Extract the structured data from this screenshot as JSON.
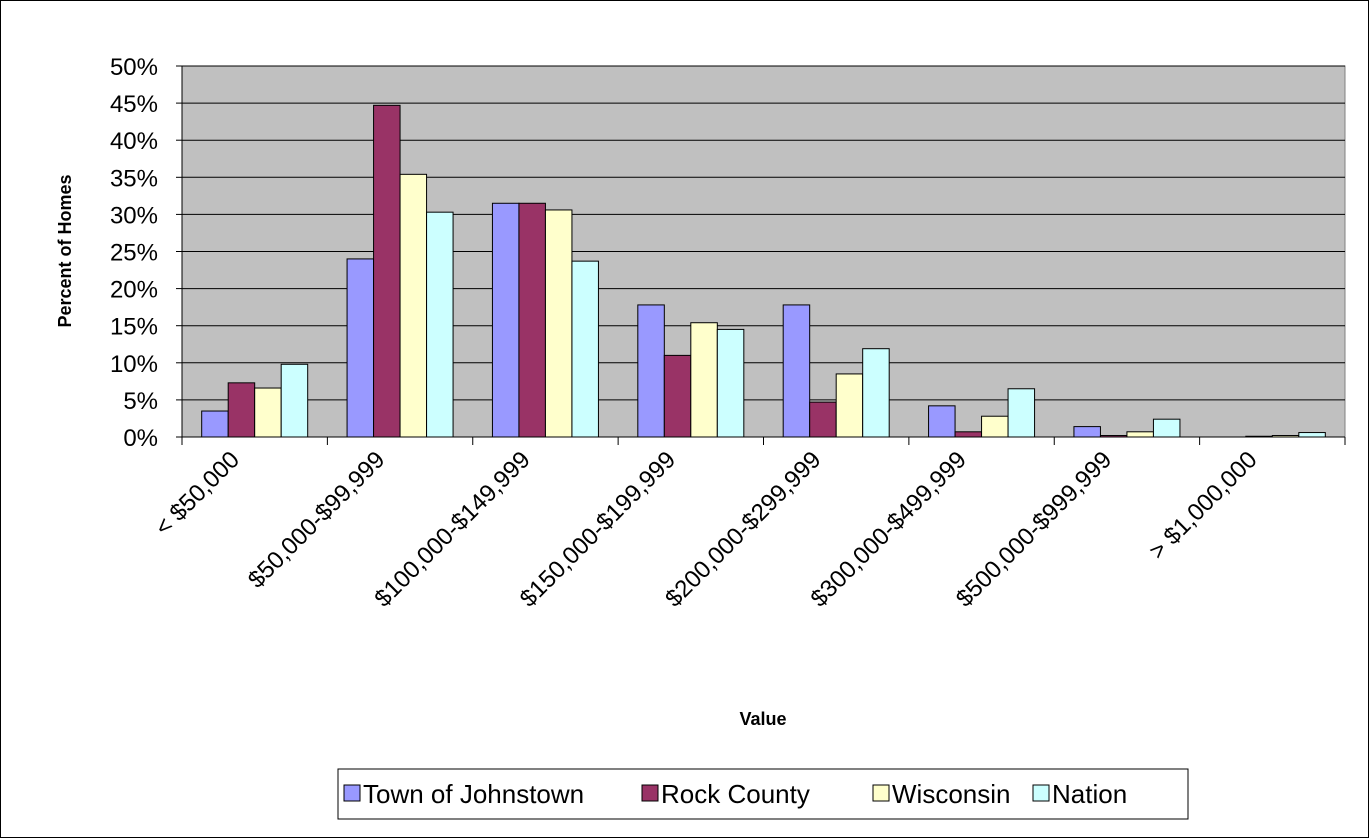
{
  "chart_data": {
    "type": "bar",
    "title": "",
    "xlabel": "Value",
    "ylabel": "Percent of Homes",
    "ylim": [
      0,
      50
    ],
    "yticks": [
      "0%",
      "5%",
      "10%",
      "15%",
      "20%",
      "25%",
      "30%",
      "35%",
      "40%",
      "45%",
      "50%"
    ],
    "categories": [
      "< $50,000",
      "$50,000-$99,999",
      "$100,000-$149,999",
      "$150,000-$199,999",
      "$200,000-$299,999",
      "$300,000-$499,999",
      "$500,000-$999,999",
      "> $1,000,000"
    ],
    "series": [
      {
        "name": "Town of Johnstown",
        "color": "#9999ff",
        "values": [
          3.5,
          24.0,
          31.5,
          17.8,
          17.8,
          4.2,
          1.4,
          0.0
        ]
      },
      {
        "name": "Rock County",
        "color": "#993366",
        "values": [
          7.3,
          44.7,
          31.5,
          11.0,
          4.7,
          0.7,
          0.2,
          0.1
        ]
      },
      {
        "name": "Wisconsin",
        "color": "#ffffcc",
        "values": [
          6.6,
          35.4,
          30.6,
          15.4,
          8.5,
          2.8,
          0.7,
          0.2
        ]
      },
      {
        "name": "Nation",
        "color": "#ccffff",
        "values": [
          9.8,
          30.3,
          23.7,
          14.5,
          11.9,
          6.5,
          2.4,
          0.6
        ]
      }
    ],
    "plot_background": "#c0c0c0",
    "grid": true,
    "legend_position": "bottom"
  }
}
